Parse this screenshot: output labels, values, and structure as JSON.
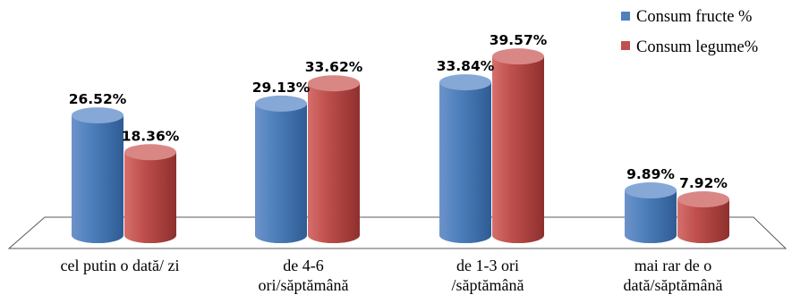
{
  "chart_data": {
    "type": "bar",
    "style": "3d-cylinder",
    "categories": [
      [
        "cel putin o dată/ zi"
      ],
      [
        "de 4-6",
        "ori/săptămână"
      ],
      [
        "de 1-3 ori",
        "/săptămână"
      ],
      [
        "mai rar de o",
        "dată/săptămână"
      ]
    ],
    "series": [
      {
        "name": "Consum fructe %",
        "color": "#4f81bd",
        "values": [
          26.52,
          29.13,
          33.84,
          9.89
        ]
      },
      {
        "name": "Consum legume%",
        "color": "#c0504d",
        "values": [
          18.36,
          33.62,
          39.57,
          7.92
        ]
      }
    ],
    "value_suffix": "%",
    "title": "",
    "xlabel": "",
    "ylabel": "",
    "ylim": [
      0,
      40
    ],
    "grid": false,
    "legend_position": "top-right"
  }
}
